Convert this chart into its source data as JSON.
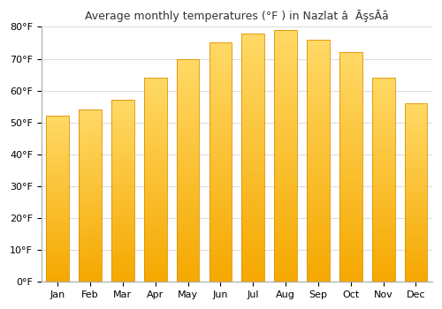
{
  "title": "Average monthly temperatures (°F ) in Nazlat â  ĀşsĀā",
  "months": [
    "Jan",
    "Feb",
    "Mar",
    "Apr",
    "May",
    "Jun",
    "Jul",
    "Aug",
    "Sep",
    "Oct",
    "Nov",
    "Dec"
  ],
  "values": [
    52,
    54,
    57,
    64,
    70,
    75,
    78,
    79,
    76,
    72,
    64,
    56
  ],
  "ylim": [
    0,
    80
  ],
  "yticks": [
    0,
    10,
    20,
    30,
    40,
    50,
    60,
    70,
    80
  ],
  "ytick_labels": [
    "0°F",
    "10°F",
    "20°F",
    "30°F",
    "40°F",
    "50°F",
    "60°F",
    "70°F",
    "80°F"
  ],
  "bar_color_bottom": "#F5A800",
  "bar_color_top": "#FFD966",
  "bar_edge_color": "#E09000",
  "background_color": "#ffffff",
  "plot_bg_color": "#ffffff",
  "title_fontsize": 9,
  "tick_fontsize": 8,
  "grid_color": "#dddddd",
  "grid_linewidth": 0.8,
  "bar_width": 0.7
}
